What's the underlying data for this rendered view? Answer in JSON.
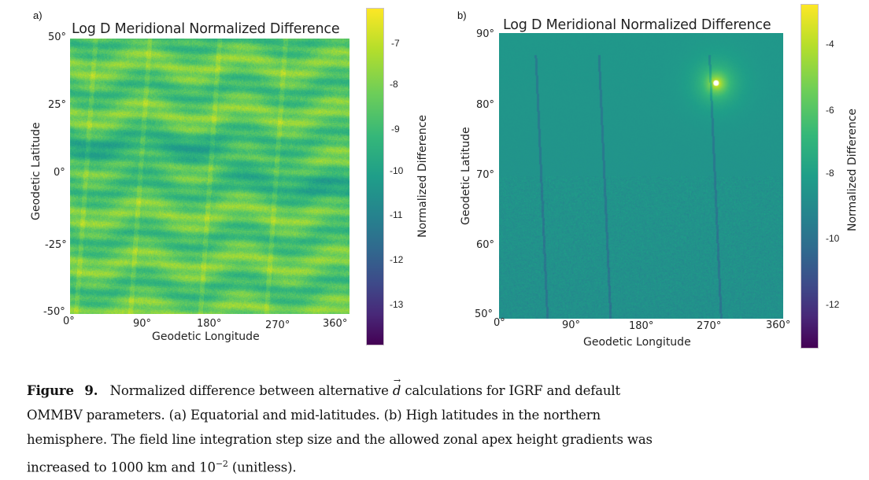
{
  "figure": {
    "panels": [
      {
        "label": "a)",
        "title": "Log D Meridional Normalized Difference",
        "ylabel": "Geodetic Latitude",
        "xlabel": "Geodetic Longitude",
        "yticks": [
          "50°",
          "25°",
          "0°",
          "-25°",
          "-50°"
        ],
        "xticks": [
          "0°",
          "90°",
          "180°",
          "270°",
          "360°"
        ],
        "colorbar": {
          "label": "Normalized Difference",
          "ticks": [
            "-7",
            "-8",
            "-9",
            "-10",
            "-11",
            "-12",
            "-13"
          ]
        }
      },
      {
        "label": "b)",
        "title": "Log D Meridional Normalized Difference",
        "ylabel": "Geodetic Latitude",
        "xlabel": "Geodetic Longitude",
        "yticks": [
          "90°",
          "80°",
          "70°",
          "60°",
          "50°"
        ],
        "xticks": [
          "0°",
          "90°",
          "180°",
          "270°",
          "360°"
        ],
        "colorbar": {
          "label": "Normalized Difference",
          "ticks": [
            "-4",
            "-6",
            "-8",
            "-10",
            "-12"
          ]
        }
      }
    ]
  },
  "chart_data": [
    {
      "type": "heatmap",
      "title": "Log D Meridional Normalized Difference",
      "xlabel": "Geodetic Longitude",
      "ylabel": "Geodetic Latitude",
      "xlim": [
        0,
        360
      ],
      "ylim": [
        -50,
        50
      ],
      "xtick_values": [
        0,
        90,
        180,
        270,
        360
      ],
      "ytick_values": [
        50,
        25,
        0,
        -25,
        -50
      ],
      "colorbar_label": "Normalized Difference",
      "colorbar_range": [
        -14,
        -6
      ],
      "colorbar_tick_values": [
        -7,
        -8,
        -9,
        -10,
        -11,
        -12,
        -13
      ],
      "colormap": "viridis",
      "typical_value_range": [
        -9.5,
        -7
      ]
    },
    {
      "type": "heatmap",
      "title": "Log D Meridional Normalized Difference",
      "xlabel": "Geodetic Longitude",
      "ylabel": "Geodetic Latitude",
      "xlim": [
        0,
        360
      ],
      "ylim": [
        50,
        90
      ],
      "xtick_values": [
        0,
        90,
        180,
        270,
        360
      ],
      "ytick_values": [
        90,
        80,
        70,
        60,
        50
      ],
      "colorbar_label": "Normalized Difference",
      "colorbar_range": [
        -13.5,
        -2.5
      ],
      "colorbar_tick_values": [
        -4,
        -6,
        -8,
        -10,
        -12
      ],
      "colormap": "viridis",
      "typical_value_range": [
        -9.5,
        -6.5
      ],
      "hotspot": {
        "lon": 275,
        "lat": 83
      }
    }
  ],
  "caption": {
    "figure_label": "Figure 9.",
    "line1_pre": "Normalized difference between alternative ",
    "vector_symbol": "d",
    "line1_post": " calculations for IGRF and default",
    "line2": "OMMBV parameters. (a) Equatorial and mid-latitudes. (b) High latitudes in the northern",
    "line3": "hemisphere. The field line integration step size and the allowed zonal apex height gradients was",
    "line4_pre": "increased to 1000 km and 10",
    "line4_exp": "−2",
    "line4_post": " (unitless)."
  },
  "colors": {
    "viridis_top": "#fde725",
    "viridis_mid": "#21918c",
    "viridis_bottom": "#440154"
  }
}
